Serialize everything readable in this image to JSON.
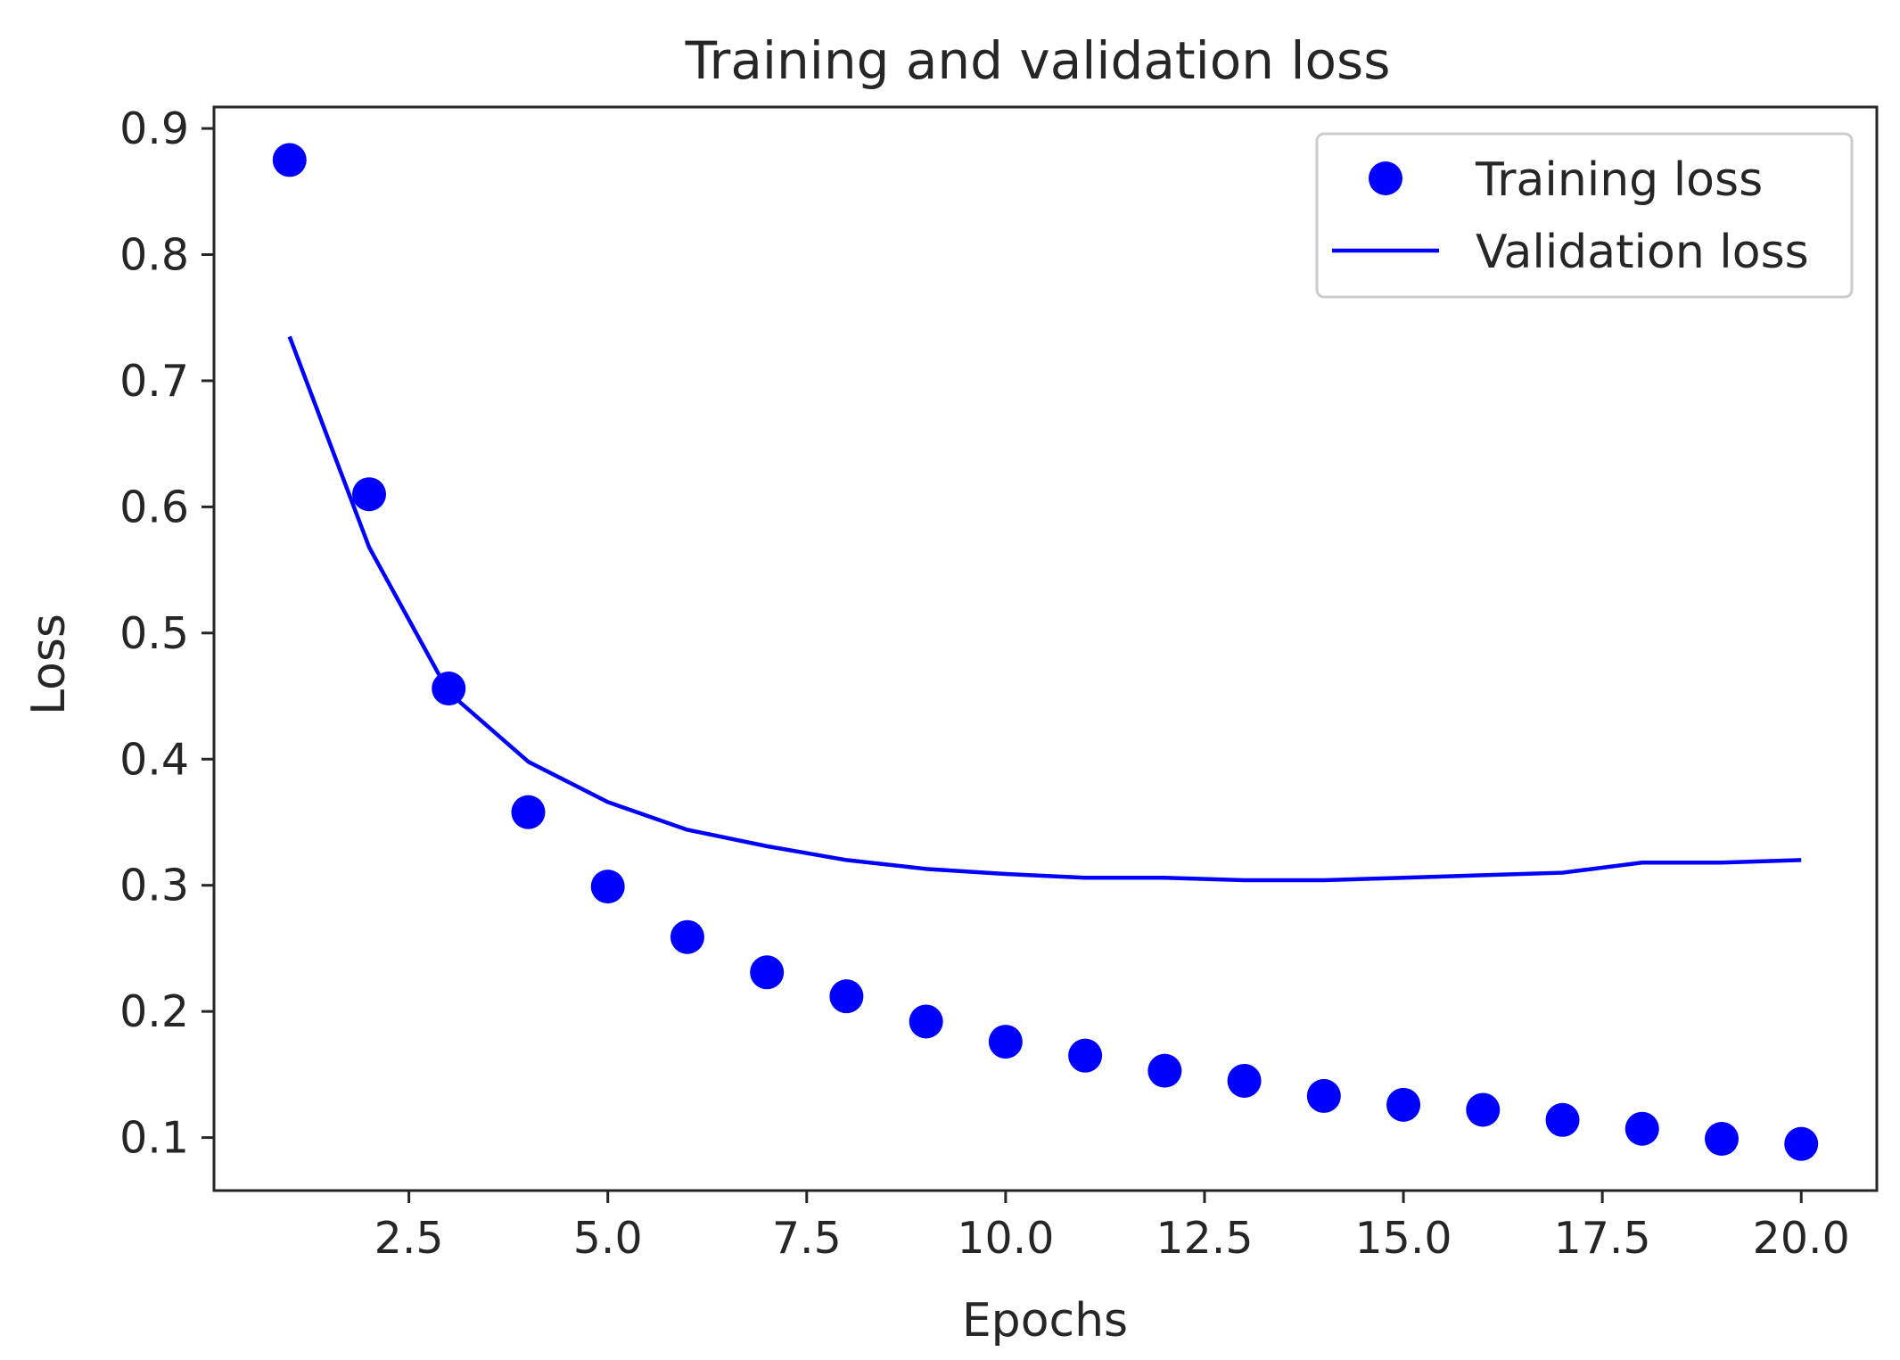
{
  "chart_data": {
    "type": "line",
    "title": "Training and validation loss",
    "xlabel": "Epochs",
    "ylabel": "Loss",
    "xlim": [
      0.05,
      20.95
    ],
    "ylim": [
      0.058,
      0.917
    ],
    "xticks": [
      2.5,
      5.0,
      7.5,
      10.0,
      12.5,
      15.0,
      17.5,
      20.0
    ],
    "xtick_labels": [
      "2.5",
      "5.0",
      "7.5",
      "10.0",
      "12.5",
      "15.0",
      "17.5",
      "20.0"
    ],
    "yticks": [
      0.1,
      0.2,
      0.3,
      0.4,
      0.5,
      0.6,
      0.7,
      0.8,
      0.9
    ],
    "ytick_labels": [
      "0.1",
      "0.2",
      "0.3",
      "0.4",
      "0.5",
      "0.6",
      "0.7",
      "0.8",
      "0.9"
    ],
    "grid": false,
    "legend_position": "top-right",
    "series": [
      {
        "name": "Training loss",
        "style": "scatter",
        "color": "#0000ff",
        "x": [
          1,
          2,
          3,
          4,
          5,
          6,
          7,
          8,
          9,
          10,
          11,
          12,
          13,
          14,
          15,
          16,
          17,
          18,
          19,
          20
        ],
        "values": [
          0.875,
          0.61,
          0.456,
          0.358,
          0.299,
          0.259,
          0.231,
          0.212,
          0.192,
          0.176,
          0.165,
          0.153,
          0.145,
          0.133,
          0.126,
          0.122,
          0.114,
          0.107,
          0.099,
          0.095
        ]
      },
      {
        "name": "Validation loss",
        "style": "line",
        "color": "#0000ff",
        "x": [
          1,
          2,
          3,
          4,
          5,
          6,
          7,
          8,
          9,
          10,
          11,
          12,
          13,
          14,
          15,
          16,
          17,
          18,
          19,
          20
        ],
        "values": [
          0.735,
          0.568,
          0.453,
          0.398,
          0.366,
          0.344,
          0.331,
          0.32,
          0.313,
          0.309,
          0.306,
          0.306,
          0.304,
          0.304,
          0.306,
          0.308,
          0.31,
          0.318,
          0.318,
          0.32
        ]
      }
    ]
  }
}
